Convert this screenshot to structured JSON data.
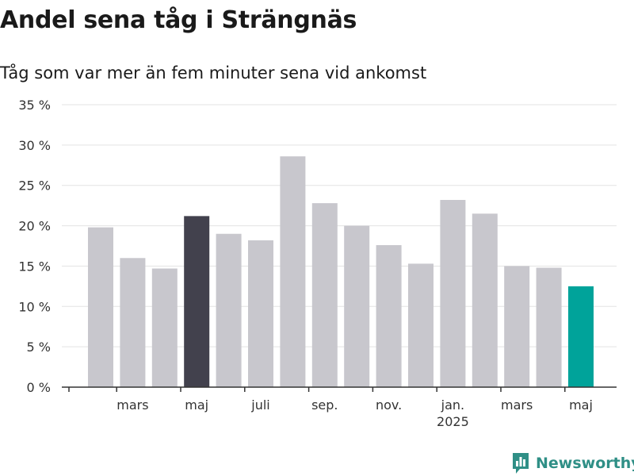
{
  "chart_data": {
    "type": "bar",
    "title": "Andel sena tåg i Strängnäs",
    "subtitle": "Tåg som var mer än fem minuter sena vid ankomst",
    "values": [
      19.8,
      16.0,
      14.7,
      21.2,
      19.0,
      18.2,
      28.6,
      22.8,
      20.0,
      17.6,
      15.3,
      23.2,
      21.5,
      15.0,
      14.8,
      12.5
    ],
    "bar_colors": [
      "#c8c7cd",
      "#c8c7cd",
      "#c8c7cd",
      "#42414d",
      "#c8c7cd",
      "#c8c7cd",
      "#c8c7cd",
      "#c8c7cd",
      "#c8c7cd",
      "#c8c7cd",
      "#c8c7cd",
      "#c8c7cd",
      "#c8c7cd",
      "#c8c7cd",
      "#c8c7cd",
      "#00a39a"
    ],
    "x_tick_labels": [
      {
        "bar_index": 1,
        "label": "mars",
        "sublabel": ""
      },
      {
        "bar_index": 3,
        "label": "maj",
        "sublabel": ""
      },
      {
        "bar_index": 5,
        "label": "juli",
        "sublabel": ""
      },
      {
        "bar_index": 7,
        "label": "sep.",
        "sublabel": ""
      },
      {
        "bar_index": 9,
        "label": "nov.",
        "sublabel": ""
      },
      {
        "bar_index": 11,
        "label": "jan.",
        "sublabel": "2025"
      },
      {
        "bar_index": 13,
        "label": "mars",
        "sublabel": ""
      },
      {
        "bar_index": 15,
        "label": "maj",
        "sublabel": ""
      }
    ],
    "y_ticks": [
      0,
      5,
      10,
      15,
      20,
      25,
      30,
      35
    ],
    "y_tick_labels": [
      "0 %",
      "5 %",
      "10 %",
      "15 %",
      "20 %",
      "25 %",
      "30 %",
      "35 %"
    ],
    "ylim": [
      0,
      35
    ],
    "grid": true,
    "colors": {
      "default": "#c8c7cd",
      "highlight": "#42414d",
      "latest": "#00a39a",
      "grid": "#e3e3e3",
      "axis": "#333333"
    }
  },
  "brand": {
    "name": "Newsworthy",
    "icon": "bar-chart-logo-icon",
    "color": "#2f8f86"
  }
}
